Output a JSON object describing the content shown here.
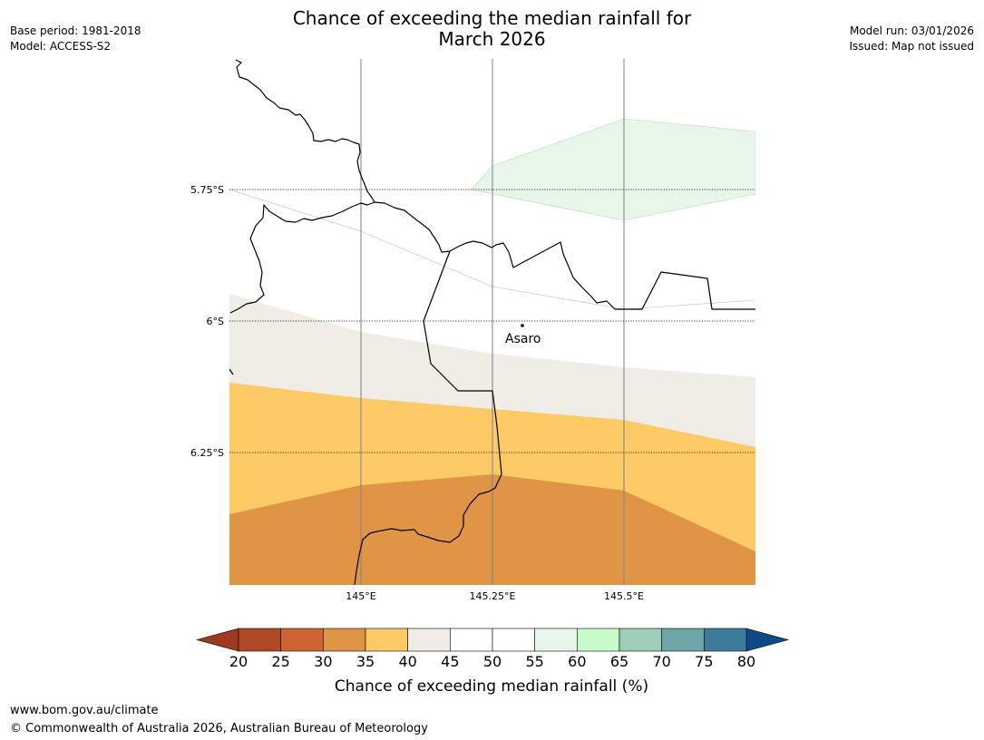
{
  "header": {
    "title_line1": "Chance of exceeding the median rainfall for",
    "title_line2": "March 2026",
    "base_period": "Base period: 1981-2018",
    "model": "Model: ACCESS-S2",
    "model_run": "Model run: 03/01/2026",
    "issued": "Issued: Map not issued"
  },
  "map": {
    "lat_labels": [
      "5.75°S",
      "6°S",
      "6.25°S"
    ],
    "lon_labels": [
      "145°E",
      "145.25°E",
      "145.5°E"
    ],
    "place": {
      "name": "Asaro"
    },
    "colors": {
      "band_55_60": "#e8f5e9",
      "band_40_45": "#f0ece6",
      "band_35_40": "#fdca65",
      "band_30_35": "#e09446",
      "border": "#000000",
      "meridian": "#888888"
    }
  },
  "colorbar": {
    "label": "Chance of exceeding median rainfall (%)",
    "ticks": [
      "20",
      "25",
      "30",
      "35",
      "40",
      "45",
      "50",
      "55",
      "60",
      "65",
      "70",
      "75",
      "80"
    ],
    "under_color": "#9e3a22",
    "over_color": "#0e4a86",
    "colors": [
      "#b04a26",
      "#cc6533",
      "#e09446",
      "#fdca65",
      "#f0ece6",
      "#ffffff",
      "#ffffff",
      "#e8f5e9",
      "#c8fbcb",
      "#9ecfb8",
      "#6ea5a6",
      "#3e7a9a"
    ]
  },
  "footer": {
    "url": "www.bom.gov.au/climate",
    "copyright": "© Commonwealth of Australia 2026, Australian Bureau of Meteorology"
  }
}
